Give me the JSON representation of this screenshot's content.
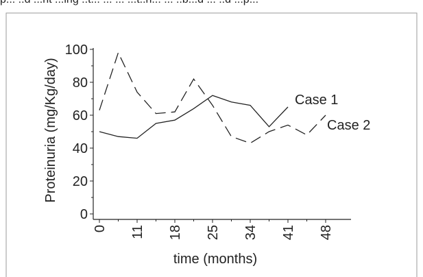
{
  "caption_fragment": "p... ..d ...nt ...ing ..t... ... ... ...t..n... ... ..b...d ... ..d ...p...",
  "chart_data": {
    "type": "line",
    "title": "",
    "xlabel": "time (months)",
    "ylabel": "Proteinuria (mg/Kg/day)",
    "xlim": [
      0,
      48
    ],
    "ylim": [
      0,
      100
    ],
    "x_ticks": [
      "0",
      "11",
      "18",
      "25",
      "34",
      "41",
      "48"
    ],
    "y_ticks": [
      "0",
      "20",
      "40",
      "60",
      "80",
      "100"
    ],
    "grid": false,
    "series": [
      {
        "name": "Case 1",
        "style": "solid",
        "color": "#222222",
        "x": [
          0,
          4,
          8,
          12,
          16,
          20,
          24,
          28,
          32,
          36,
          40
        ],
        "y": [
          50,
          47,
          46,
          55,
          57,
          64,
          72,
          68,
          66,
          53,
          65
        ]
      },
      {
        "name": "Case 2",
        "style": "dashed",
        "color": "#222222",
        "x": [
          0,
          4,
          8,
          12,
          16,
          20,
          24,
          28,
          32,
          36,
          40,
          44,
          48
        ],
        "y": [
          63,
          98,
          74,
          61,
          62,
          82,
          66,
          47,
          43,
          50,
          54,
          48,
          60
        ]
      }
    ]
  }
}
